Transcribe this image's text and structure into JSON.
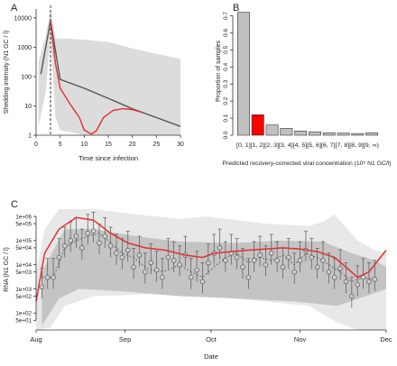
{
  "chart_data": [
    {
      "panel": "A",
      "type": "line",
      "xlabel": "Time since infection",
      "ylabel": "Shedding intensity (N1 GC / l)",
      "xlim": [
        0,
        30
      ],
      "ylim": [
        1,
        20000
      ],
      "y_scale": "log",
      "x_ticks": [
        0,
        5,
        10,
        15,
        20,
        25,
        30
      ],
      "y_ticks": [
        1,
        10,
        100,
        1000,
        10000
      ],
      "y_tick_labels": [
        "1",
        "10",
        "100",
        "1000",
        "10000"
      ],
      "vline_x": 3,
      "band_upper": [
        [
          0.5,
          300
        ],
        [
          2,
          2500
        ],
        [
          3,
          20000
        ],
        [
          4,
          2000
        ],
        [
          6,
          2000
        ],
        [
          10,
          1800
        ],
        [
          15,
          1500
        ],
        [
          20,
          900
        ],
        [
          25,
          600
        ],
        [
          30,
          400
        ]
      ],
      "band_lower": [
        [
          0.5,
          2
        ],
        [
          2,
          30
        ],
        [
          3,
          3000
        ],
        [
          4,
          4
        ],
        [
          5,
          1.5
        ],
        [
          10,
          1
        ],
        [
          30,
          1
        ]
      ],
      "series": [
        {
          "color": "#555555",
          "points": [
            [
              1,
              120
            ],
            [
              3,
              8000
            ],
            [
              5,
              80
            ],
            [
              10,
              40
            ],
            [
              15,
              18
            ],
            [
              20,
              8
            ],
            [
              25,
              4
            ],
            [
              30,
              2
            ]
          ]
        },
        {
          "color": "#e03030",
          "points": [
            [
              3,
              8000
            ],
            [
              4,
              300
            ],
            [
              5,
              40
            ],
            [
              7,
              12
            ],
            [
              9,
              4
            ],
            [
              10,
              1.5
            ],
            [
              11.5,
              1.1
            ],
            [
              12.5,
              1.4
            ],
            [
              14,
              4
            ],
            [
              16,
              7
            ],
            [
              18,
              8
            ],
            [
              20,
              7.5
            ],
            [
              22,
              6
            ]
          ]
        }
      ]
    },
    {
      "panel": "B",
      "type": "bar",
      "xlabel": "Predicted recovery-corrected viral concentration (10⁶ N1 GC/l)",
      "ylabel": "Proportion of samples",
      "ylim": [
        0,
        0.75
      ],
      "y_ticks": [
        0.0,
        0.1,
        0.2,
        0.3,
        0.4,
        0.5,
        0.6,
        0.7
      ],
      "y_tick_labels": [
        "0.0",
        "0.1",
        "0.2",
        "0.3",
        "0.4",
        "0.5",
        "0.6",
        "0.7"
      ],
      "categories": [
        "[0, 1]",
        "[1, 2]",
        "[2, 3]",
        "[3, 4]",
        "[4, 5]",
        "[5, 6]",
        "[6, 7]",
        "[7, 8]",
        "[8, 9]",
        "[9, ∞)"
      ],
      "category_labels_text": "[0, 1][1, 2][2, 3][3, 4][4, 5][5, 6][6, 7][7, 8][8, 9][9, ∞)",
      "values": [
        0.72,
        0.12,
        0.06,
        0.04,
        0.025,
        0.02,
        0.015,
        0.012,
        0.01,
        0.015
      ],
      "highlight_index": 1,
      "bar_color": "#c0c0c0",
      "highlight_color": "#ff0000"
    },
    {
      "panel": "C",
      "type": "line",
      "xlabel": "Date",
      "ylabel": "RNA (N1 GC / l)",
      "x_tick_labels": [
        "Aug",
        "Sep",
        "Oct",
        "Nov",
        "Dec"
      ],
      "y_scale": "log",
      "ylim": [
        20,
        2000000
      ],
      "y_ticks": [
        50,
        100,
        500,
        1000,
        5000,
        10000,
        50000,
        100000,
        500000,
        1000000
      ],
      "y_tick_labels": [
        "5e+01",
        "1e+02",
        "5e+02",
        "1e+03",
        "5e+03",
        "1e+04",
        "5e+04",
        "1e+05",
        "5e+05",
        "1e+06"
      ],
      "outer_upper": [
        [
          0,
          5000
        ],
        [
          3,
          300000
        ],
        [
          8,
          2000000
        ],
        [
          20,
          2000000
        ],
        [
          35,
          1200000
        ],
        [
          50,
          800000
        ],
        [
          60,
          1000000
        ],
        [
          70,
          700000
        ],
        [
          80,
          500000
        ],
        [
          95,
          400000
        ],
        [
          100,
          600000
        ],
        [
          104,
          1200000
        ],
        [
          112,
          100000
        ],
        [
          118,
          40000
        ],
        [
          122,
          30000
        ]
      ],
      "outer_lower": [
        [
          0,
          20
        ],
        [
          5,
          25
        ],
        [
          10,
          200
        ],
        [
          20,
          500
        ],
        [
          40,
          600
        ],
        [
          60,
          500
        ],
        [
          80,
          300
        ],
        [
          95,
          200
        ],
        [
          105,
          40
        ],
        [
          112,
          20
        ],
        [
          122,
          20
        ]
      ],
      "inner_upper": [
        [
          2,
          5000
        ],
        [
          10,
          300000
        ],
        [
          20,
          300000
        ],
        [
          35,
          150000
        ],
        [
          50,
          90000
        ],
        [
          70,
          80000
        ],
        [
          85,
          100000
        ],
        [
          100,
          90000
        ],
        [
          110,
          30000
        ],
        [
          118,
          15000
        ],
        [
          122,
          8000
        ]
      ],
      "inner_lower": [
        [
          2,
          30
        ],
        [
          8,
          400
        ],
        [
          15,
          1000
        ],
        [
          30,
          800
        ],
        [
          50,
          500
        ],
        [
          70,
          400
        ],
        [
          90,
          300
        ],
        [
          105,
          200
        ],
        [
          115,
          500
        ],
        [
          122,
          1000
        ]
      ],
      "fit_line": [
        [
          0,
          300
        ],
        [
          3,
          30000
        ],
        [
          8,
          300000
        ],
        [
          14,
          900000
        ],
        [
          20,
          700000
        ],
        [
          26,
          200000
        ],
        [
          32,
          80000
        ],
        [
          38,
          50000
        ],
        [
          45,
          40000
        ],
        [
          52,
          25000
        ],
        [
          58,
          20000
        ],
        [
          62,
          30000
        ],
        [
          68,
          35000
        ],
        [
          74,
          40000
        ],
        [
          80,
          45000
        ],
        [
          86,
          50000
        ],
        [
          92,
          45000
        ],
        [
          98,
          35000
        ],
        [
          104,
          20000
        ],
        [
          108,
          8000
        ],
        [
          112,
          3000
        ],
        [
          116,
          5000
        ],
        [
          120,
          20000
        ],
        [
          122,
          40000
        ]
      ],
      "dashed_line": [
        [
          2,
          3000
        ],
        [
          6,
          3000
        ],
        [
          10,
          50000
        ],
        [
          14,
          100000
        ],
        [
          18,
          150000
        ],
        [
          22,
          200000
        ],
        [
          26,
          80000
        ],
        [
          30,
          30000
        ],
        [
          34,
          20000
        ],
        [
          38,
          8000
        ],
        [
          42,
          5000
        ],
        [
          46,
          6000
        ],
        [
          50,
          10000
        ],
        [
          54,
          5000
        ],
        [
          58,
          3000
        ],
        [
          62,
          8000
        ],
        [
          66,
          20000
        ],
        [
          70,
          30000
        ],
        [
          74,
          12000
        ],
        [
          78,
          20000
        ],
        [
          82,
          15000
        ],
        [
          86,
          25000
        ],
        [
          90,
          10000
        ],
        [
          94,
          30000
        ],
        [
          98,
          20000
        ],
        [
          102,
          10000
        ],
        [
          106,
          5000
        ],
        [
          110,
          2000
        ],
        [
          114,
          3000
        ],
        [
          118,
          2500
        ]
      ],
      "points": [
        [
          2,
          1200
        ],
        [
          4,
          3000
        ],
        [
          6,
          3000
        ],
        [
          8,
          20000
        ],
        [
          10,
          60000
        ],
        [
          12,
          100000
        ],
        [
          14,
          150000
        ],
        [
          16,
          50000
        ],
        [
          18,
          200000
        ],
        [
          20,
          250000
        ],
        [
          22,
          80000
        ],
        [
          24,
          150000
        ],
        [
          26,
          60000
        ],
        [
          28,
          30000
        ],
        [
          30,
          20000
        ],
        [
          32,
          40000
        ],
        [
          34,
          8000
        ],
        [
          36,
          25000
        ],
        [
          38,
          5000
        ],
        [
          40,
          12000
        ],
        [
          42,
          6000
        ],
        [
          44,
          3000
        ],
        [
          46,
          20000
        ],
        [
          48,
          15000
        ],
        [
          50,
          10000
        ],
        [
          52,
          25000
        ],
        [
          54,
          3000
        ],
        [
          56,
          6000
        ],
        [
          58,
          2000
        ],
        [
          60,
          12000
        ],
        [
          62,
          30000
        ],
        [
          64,
          50000
        ],
        [
          66,
          15000
        ],
        [
          68,
          30000
        ],
        [
          70,
          20000
        ],
        [
          72,
          8000
        ],
        [
          74,
          3000
        ],
        [
          76,
          15000
        ],
        [
          78,
          25000
        ],
        [
          80,
          10000
        ],
        [
          82,
          30000
        ],
        [
          84,
          15000
        ],
        [
          86,
          8000
        ],
        [
          88,
          20000
        ],
        [
          90,
          5000
        ],
        [
          92,
          15000
        ],
        [
          94,
          40000
        ],
        [
          96,
          20000
        ],
        [
          98,
          8000
        ],
        [
          100,
          15000
        ],
        [
          102,
          5000
        ],
        [
          104,
          3000
        ],
        [
          106,
          7000
        ],
        [
          108,
          2000
        ],
        [
          110,
          500
        ],
        [
          112,
          1500
        ],
        [
          114,
          3000
        ],
        [
          116,
          2000
        ],
        [
          118,
          2500
        ]
      ]
    }
  ],
  "panel_labels": {
    "a": "A",
    "b": "B",
    "c": "C"
  }
}
